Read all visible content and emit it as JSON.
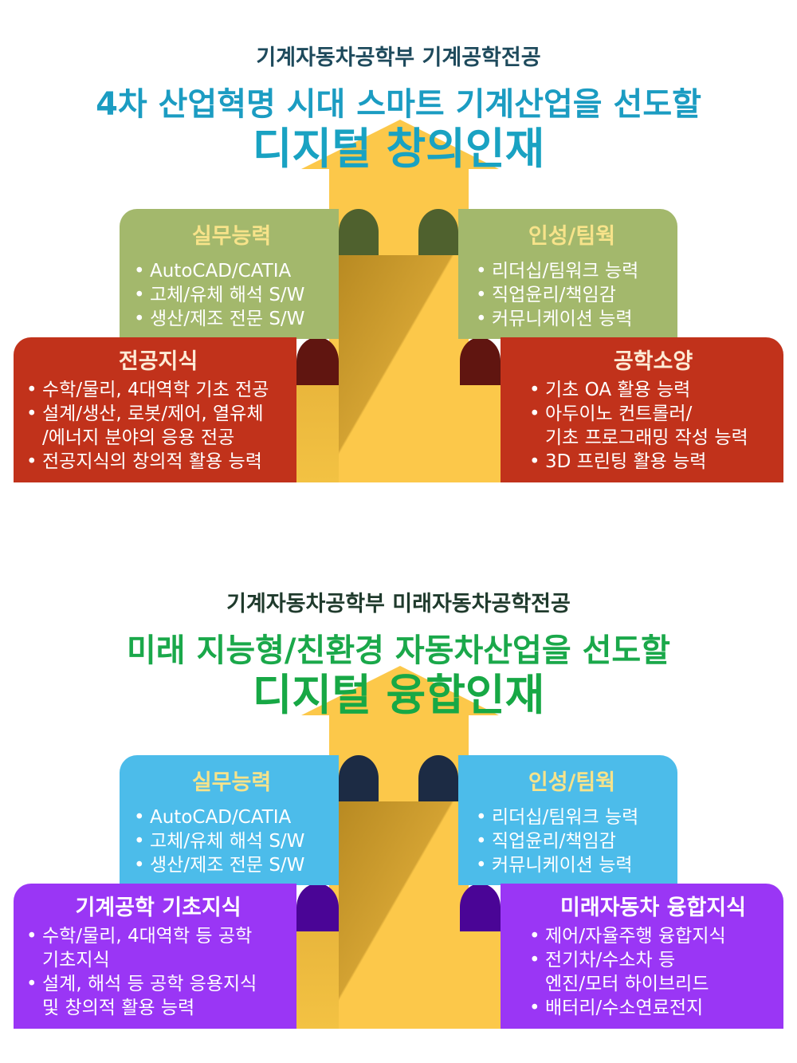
{
  "sections": [
    {
      "subtitle": "기계자동차공학부 기계공학전공",
      "title": "4차 산업혁명 시대 스마트 기계산업을 선도할",
      "headline": "디지털 창의인재",
      "colors": {
        "subtitle": "#1e4a5c",
        "title": "#1b9cc2",
        "headline": "#19a2c2",
        "top_box": "#a3b86c",
        "top_tab": "#4f612e",
        "bottom_box": "#c1321b",
        "bottom_tab": "#601510",
        "top_heading": "#f7e38a",
        "bottom_heading": "#fdebd6"
      },
      "boxes": [
        {
          "heading": "실무능력",
          "items": [
            {
              "text": "AutoCAD/CATIA"
            },
            {
              "text": "고체/유체 해석 S/W"
            },
            {
              "text": "생산/제조 전문 S/W"
            }
          ]
        },
        {
          "heading": "인성/팀웍",
          "items": [
            {
              "text": "리더십/팀워크 능력"
            },
            {
              "text": "직업윤리/책임감"
            },
            {
              "text": "커뮤니케이션 능력"
            }
          ]
        },
        {
          "heading": "전공지식",
          "items": [
            {
              "text": "수학/물리, 4대역학 기초 전공"
            },
            {
              "text": "설계/생산, 로봇/제어, 열유체",
              "cont": "/에너지  분야의 응용 전공"
            },
            {
              "text": "전공지식의 창의적 활용 능력"
            }
          ]
        },
        {
          "heading": "공학소양",
          "items": [
            {
              "text": "기초 OA 활용 능력"
            },
            {
              "text": "아두이노 컨트롤러/",
              "cont": "기초 프로그래밍 작성 능력"
            },
            {
              "text": "3D 프린팅 활용 능력"
            }
          ]
        }
      ]
    },
    {
      "subtitle": "기계자동차공학부 미래자동차공학전공",
      "title": "미래 지능형/친환경 자동차산업을 선도할",
      "headline": "디지털 융합인재",
      "colors": {
        "subtitle": "#1f3a2c",
        "title": "#1aa84a",
        "headline": "#17a845",
        "top_box": "#4cbcea",
        "top_tab": "#1c2b44",
        "bottom_box": "#9a36f5",
        "bottom_tab": "#4a0596",
        "top_heading": "#f7e38a",
        "bottom_heading": "#ffffff"
      },
      "boxes": [
        {
          "heading": "실무능력",
          "items": [
            {
              "text": "AutoCAD/CATIA"
            },
            {
              "text": "고체/유체 해석 S/W"
            },
            {
              "text": "생산/제조 전문 S/W"
            }
          ]
        },
        {
          "heading": "인성/팀웍",
          "items": [
            {
              "text": "리더십/팀워크 능력"
            },
            {
              "text": "직업윤리/책임감"
            },
            {
              "text": "커뮤니케이션 능력"
            }
          ]
        },
        {
          "heading": "기계공학 기초지식",
          "items": [
            {
              "text": "수학/물리, 4대역학 등 공학",
              "cont": "기초지식"
            },
            {
              "text": "설계, 해석 등 공학 응용지식",
              "cont": "및 창의적 활용 능력"
            }
          ]
        },
        {
          "heading": "미래자동차 융합지식",
          "items": [
            {
              "text": "제어/자율주행 융합지식"
            },
            {
              "text": "전기차/수소차 등",
              "cont": "엔진/모터 하이브리드"
            },
            {
              "text": "배터리/수소연료전지"
            }
          ]
        }
      ]
    }
  ],
  "bullet": "•"
}
